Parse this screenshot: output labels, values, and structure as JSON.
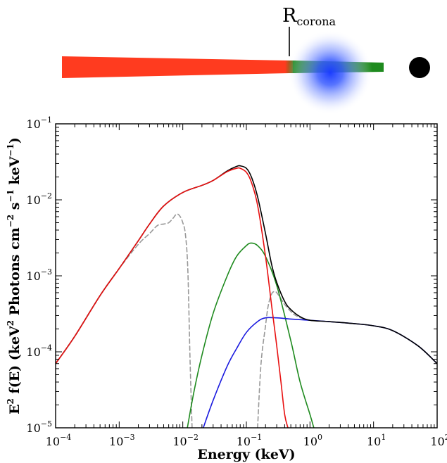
{
  "schematic": {
    "radius_label_base": "R",
    "radius_label_sub": "corona",
    "colors": {
      "outer_disk": "#ff3b1f",
      "inner_disk": "#1e8a1e",
      "corona": "#1a3cff",
      "black_hole": "#000000"
    }
  },
  "chart_data": {
    "type": "line",
    "xlabel": "Energy (keV)",
    "ylabel_parts": [
      "E",
      "2",
      " f(E) (keV",
      "2",
      " Photons cm",
      "−2",
      " s",
      "−1",
      " keV",
      "−1",
      ")"
    ],
    "xscale": "log",
    "yscale": "log",
    "xlim": [
      0.0001,
      100
    ],
    "ylim": [
      1e-05,
      0.1
    ],
    "xticks": [
      {
        "base": "10",
        "exp": "−4"
      },
      {
        "base": "10",
        "exp": "−3"
      },
      {
        "base": "10",
        "exp": "−2"
      },
      {
        "base": "10",
        "exp": "−1"
      },
      {
        "base": "10",
        "exp": "0"
      },
      {
        "base": "10",
        "exp": "1"
      },
      {
        "base": "10",
        "exp": "2"
      }
    ],
    "yticks": [
      {
        "base": "10",
        "exp": "−5"
      },
      {
        "base": "10",
        "exp": "−4"
      },
      {
        "base": "10",
        "exp": "−3"
      },
      {
        "base": "10",
        "exp": "−2"
      },
      {
        "base": "10",
        "exp": "−1"
      }
    ],
    "series": [
      {
        "color": "#999999",
        "dash": true,
        "x": [
          0.0001,
          0.0002,
          0.0005,
          0.001,
          0.002,
          0.003,
          0.004,
          0.005,
          0.006,
          0.007,
          0.008,
          0.009,
          0.01,
          0.011,
          0.012,
          0.013,
          0.014
        ],
        "y": [
          7e-05,
          0.00016,
          0.00055,
          0.00125,
          0.0026,
          0.0036,
          0.0046,
          0.0048,
          0.005,
          0.0057,
          0.0065,
          0.0061,
          0.005,
          0.0035,
          0.0012,
          8e-05,
          1e-05
        ]
      },
      {
        "color": "#999999",
        "dash": true,
        "x": [
          0.15,
          0.17,
          0.2,
          0.22,
          0.25,
          0.28,
          0.3,
          0.35,
          0.4,
          0.5,
          0.6,
          0.8,
          1.0
        ],
        "y": [
          1e-05,
          7e-05,
          0.00022,
          0.0004,
          0.00058,
          0.00062,
          0.0006,
          0.0005,
          0.00042,
          0.00034,
          0.0003,
          0.00027,
          0.00026
        ]
      },
      {
        "color": "#1e8a1e",
        "dash": false,
        "x": [
          0.0118,
          0.015,
          0.02,
          0.03,
          0.05,
          0.07,
          0.1,
          0.12,
          0.15,
          0.2,
          0.3,
          0.5,
          0.7,
          1.0,
          1.15
        ],
        "y": [
          1e-05,
          3e-05,
          9e-05,
          0.00032,
          0.001,
          0.0018,
          0.0025,
          0.0027,
          0.0025,
          0.0018,
          0.00075,
          0.00014,
          4e-05,
          1.5e-05,
          1e-05
        ]
      },
      {
        "color": "#1a1adf",
        "dash": false,
        "x": [
          0.021,
          0.03,
          0.05,
          0.07,
          0.1,
          0.15,
          0.2,
          0.3,
          0.5,
          1.0,
          2.0,
          5.0,
          10,
          20,
          50,
          100
        ],
        "y": [
          1e-05,
          2.3e-05,
          6.5e-05,
          0.00011,
          0.00018,
          0.00025,
          0.00028,
          0.00028,
          0.00027,
          0.00026,
          0.00025,
          0.000235,
          0.00022,
          0.00019,
          0.00012,
          7e-05
        ]
      },
      {
        "color": "#000000",
        "dash": false,
        "x": [
          0.0001,
          0.0002,
          0.0005,
          0.001,
          0.002,
          0.003,
          0.005,
          0.01,
          0.02,
          0.03,
          0.05,
          0.07,
          0.08,
          0.1,
          0.12,
          0.15,
          0.2,
          0.25,
          0.3,
          0.4,
          0.5,
          0.7,
          1.0,
          2.0,
          5.0,
          10,
          20,
          50,
          100
        ],
        "y": [
          7e-05,
          0.00016,
          0.00055,
          0.00125,
          0.0029,
          0.0048,
          0.0083,
          0.0125,
          0.0155,
          0.018,
          0.024,
          0.0275,
          0.028,
          0.026,
          0.02,
          0.011,
          0.0036,
          0.0014,
          0.00082,
          0.00046,
          0.00036,
          0.00029,
          0.00026,
          0.00025,
          0.000235,
          0.00022,
          0.00019,
          0.00012,
          7e-05
        ]
      },
      {
        "color": "#e81010",
        "dash": false,
        "x": [
          0.0001,
          0.0002,
          0.0005,
          0.001,
          0.002,
          0.003,
          0.005,
          0.01,
          0.02,
          0.03,
          0.05,
          0.07,
          0.08,
          0.1,
          0.12,
          0.15,
          0.2,
          0.25,
          0.3,
          0.35,
          0.4,
          0.45
        ],
        "y": [
          7e-05,
          0.00016,
          0.00055,
          0.00125,
          0.0029,
          0.0048,
          0.0083,
          0.0125,
          0.0155,
          0.018,
          0.0235,
          0.026,
          0.026,
          0.023,
          0.017,
          0.0085,
          0.0018,
          0.0004,
          0.00012,
          4e-05,
          1.5e-05,
          1e-05
        ]
      }
    ]
  }
}
